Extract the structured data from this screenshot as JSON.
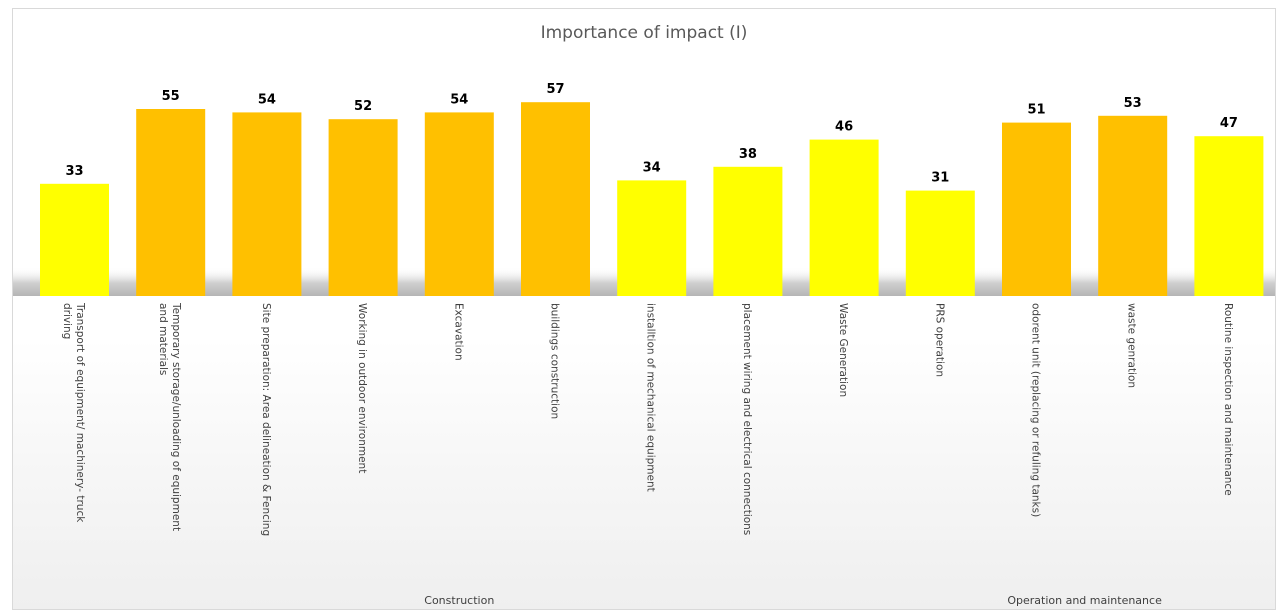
{
  "chart_data": {
    "type": "bar",
    "title": "Importance of impact (I)",
    "categories": [
      [
        "Transport of equipment/ machinery- truck",
        "driving"
      ],
      [
        "Temporary storage/unloading of equipment",
        "and materials"
      ],
      [
        "Site preparation: Area delineation & Fencing"
      ],
      [
        "Working in outdoor environment"
      ],
      [
        "Excavation"
      ],
      [
        "buildings construction"
      ],
      [
        "installtion of mechanical equipment"
      ],
      [
        "placement wiring and electrical connections"
      ],
      [
        "Waste Generation"
      ],
      [
        "PRS operation"
      ],
      [
        "odorent unit (replacing or refuling tanks)"
      ],
      [
        "waste genration"
      ],
      [
        "Routine inspection and maintenance"
      ]
    ],
    "values": [
      33,
      55,
      54,
      52,
      54,
      57,
      34,
      38,
      46,
      31,
      51,
      53,
      47
    ],
    "groups": [
      {
        "label": "Construction",
        "start": 0,
        "end": 8
      },
      {
        "label": "Operation and maintenance",
        "start": 9,
        "end": 12
      }
    ],
    "colors": {
      "high": "#FFC000",
      "low": "#FFFF00",
      "threshold": 47,
      "floor_shadow": "#bfbfbf"
    },
    "ylim": [
      0,
      62
    ],
    "grid": false,
    "legend": "none"
  }
}
